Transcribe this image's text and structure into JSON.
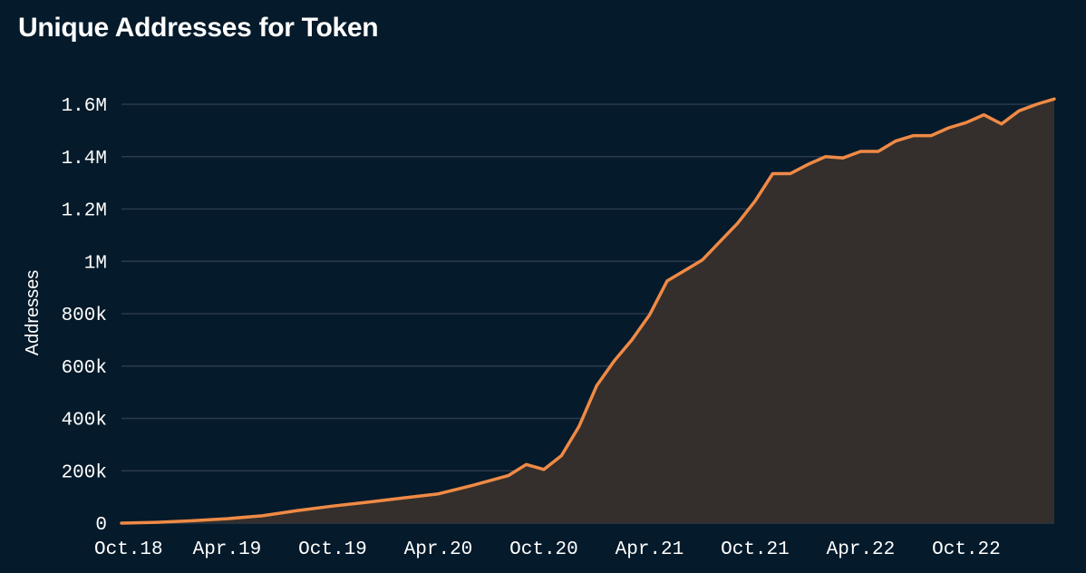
{
  "colors": {
    "background": "#051a2a",
    "gridline": "#2a3a4e",
    "line": "#f08a45",
    "area": "#342f2c",
    "text": "#ffffff"
  },
  "chart_data": {
    "type": "area",
    "title": "Unique Addresses for Token",
    "xlabel": "",
    "ylabel": "Addresses",
    "x_tick_labels": [
      "Oct.18",
      "Apr.19",
      "Oct.19",
      "Apr.20",
      "Oct.20",
      "Apr.21",
      "Oct.21",
      "Apr.22",
      "Oct.22"
    ],
    "x_tick_dates": [
      "2018-10",
      "2019-04",
      "2019-10",
      "2020-04",
      "2020-10",
      "2021-04",
      "2021-10",
      "2022-04",
      "2022-10"
    ],
    "xlim": [
      "2018-10",
      "2023-03"
    ],
    "y_ticks": [
      0,
      200000,
      400000,
      600000,
      800000,
      1000000,
      1200000,
      1400000,
      1600000
    ],
    "y_tick_labels": [
      "0",
      "200k",
      "400k",
      "600k",
      "800k",
      "1M",
      "1.2M",
      "1.4M",
      "1.6M"
    ],
    "ylim": [
      0,
      1600000
    ],
    "grid": true,
    "legend": "none",
    "series": [
      {
        "x": [
          "2018-10",
          "2018-12",
          "2019-02",
          "2019-04",
          "2019-06",
          "2019-08",
          "2019-10",
          "2019-12",
          "2020-02",
          "2020-04",
          "2020-06",
          "2020-08",
          "2020-09",
          "2020-10",
          "2020-11",
          "2020-12",
          "2021-01",
          "2021-02",
          "2021-03",
          "2021-04",
          "2021-05",
          "2021-06",
          "2021-07",
          "2021-08",
          "2021-09",
          "2021-10",
          "2021-11",
          "2021-12",
          "2022-01",
          "2022-02",
          "2022-03",
          "2022-04",
          "2022-05",
          "2022-06",
          "2022-07",
          "2022-08",
          "2022-09",
          "2022-10",
          "2022-11",
          "2022-12",
          "2023-01",
          "2023-02",
          "2023-03"
        ],
        "values": [
          0,
          3000,
          9000,
          17000,
          28000,
          48000,
          65000,
          80000,
          96000,
          112000,
          145000,
          182000,
          224000,
          205000,
          258000,
          370000,
          525000,
          620000,
          700000,
          795000,
          925000,
          965000,
          1005000,
          1075000,
          1145000,
          1230000,
          1335000,
          1335000,
          1370000,
          1400000,
          1395000,
          1420000,
          1420000,
          1460000,
          1480000,
          1480000,
          1510000,
          1530000,
          1560000,
          1525000,
          1575000,
          1600000,
          1620000
        ]
      }
    ]
  }
}
